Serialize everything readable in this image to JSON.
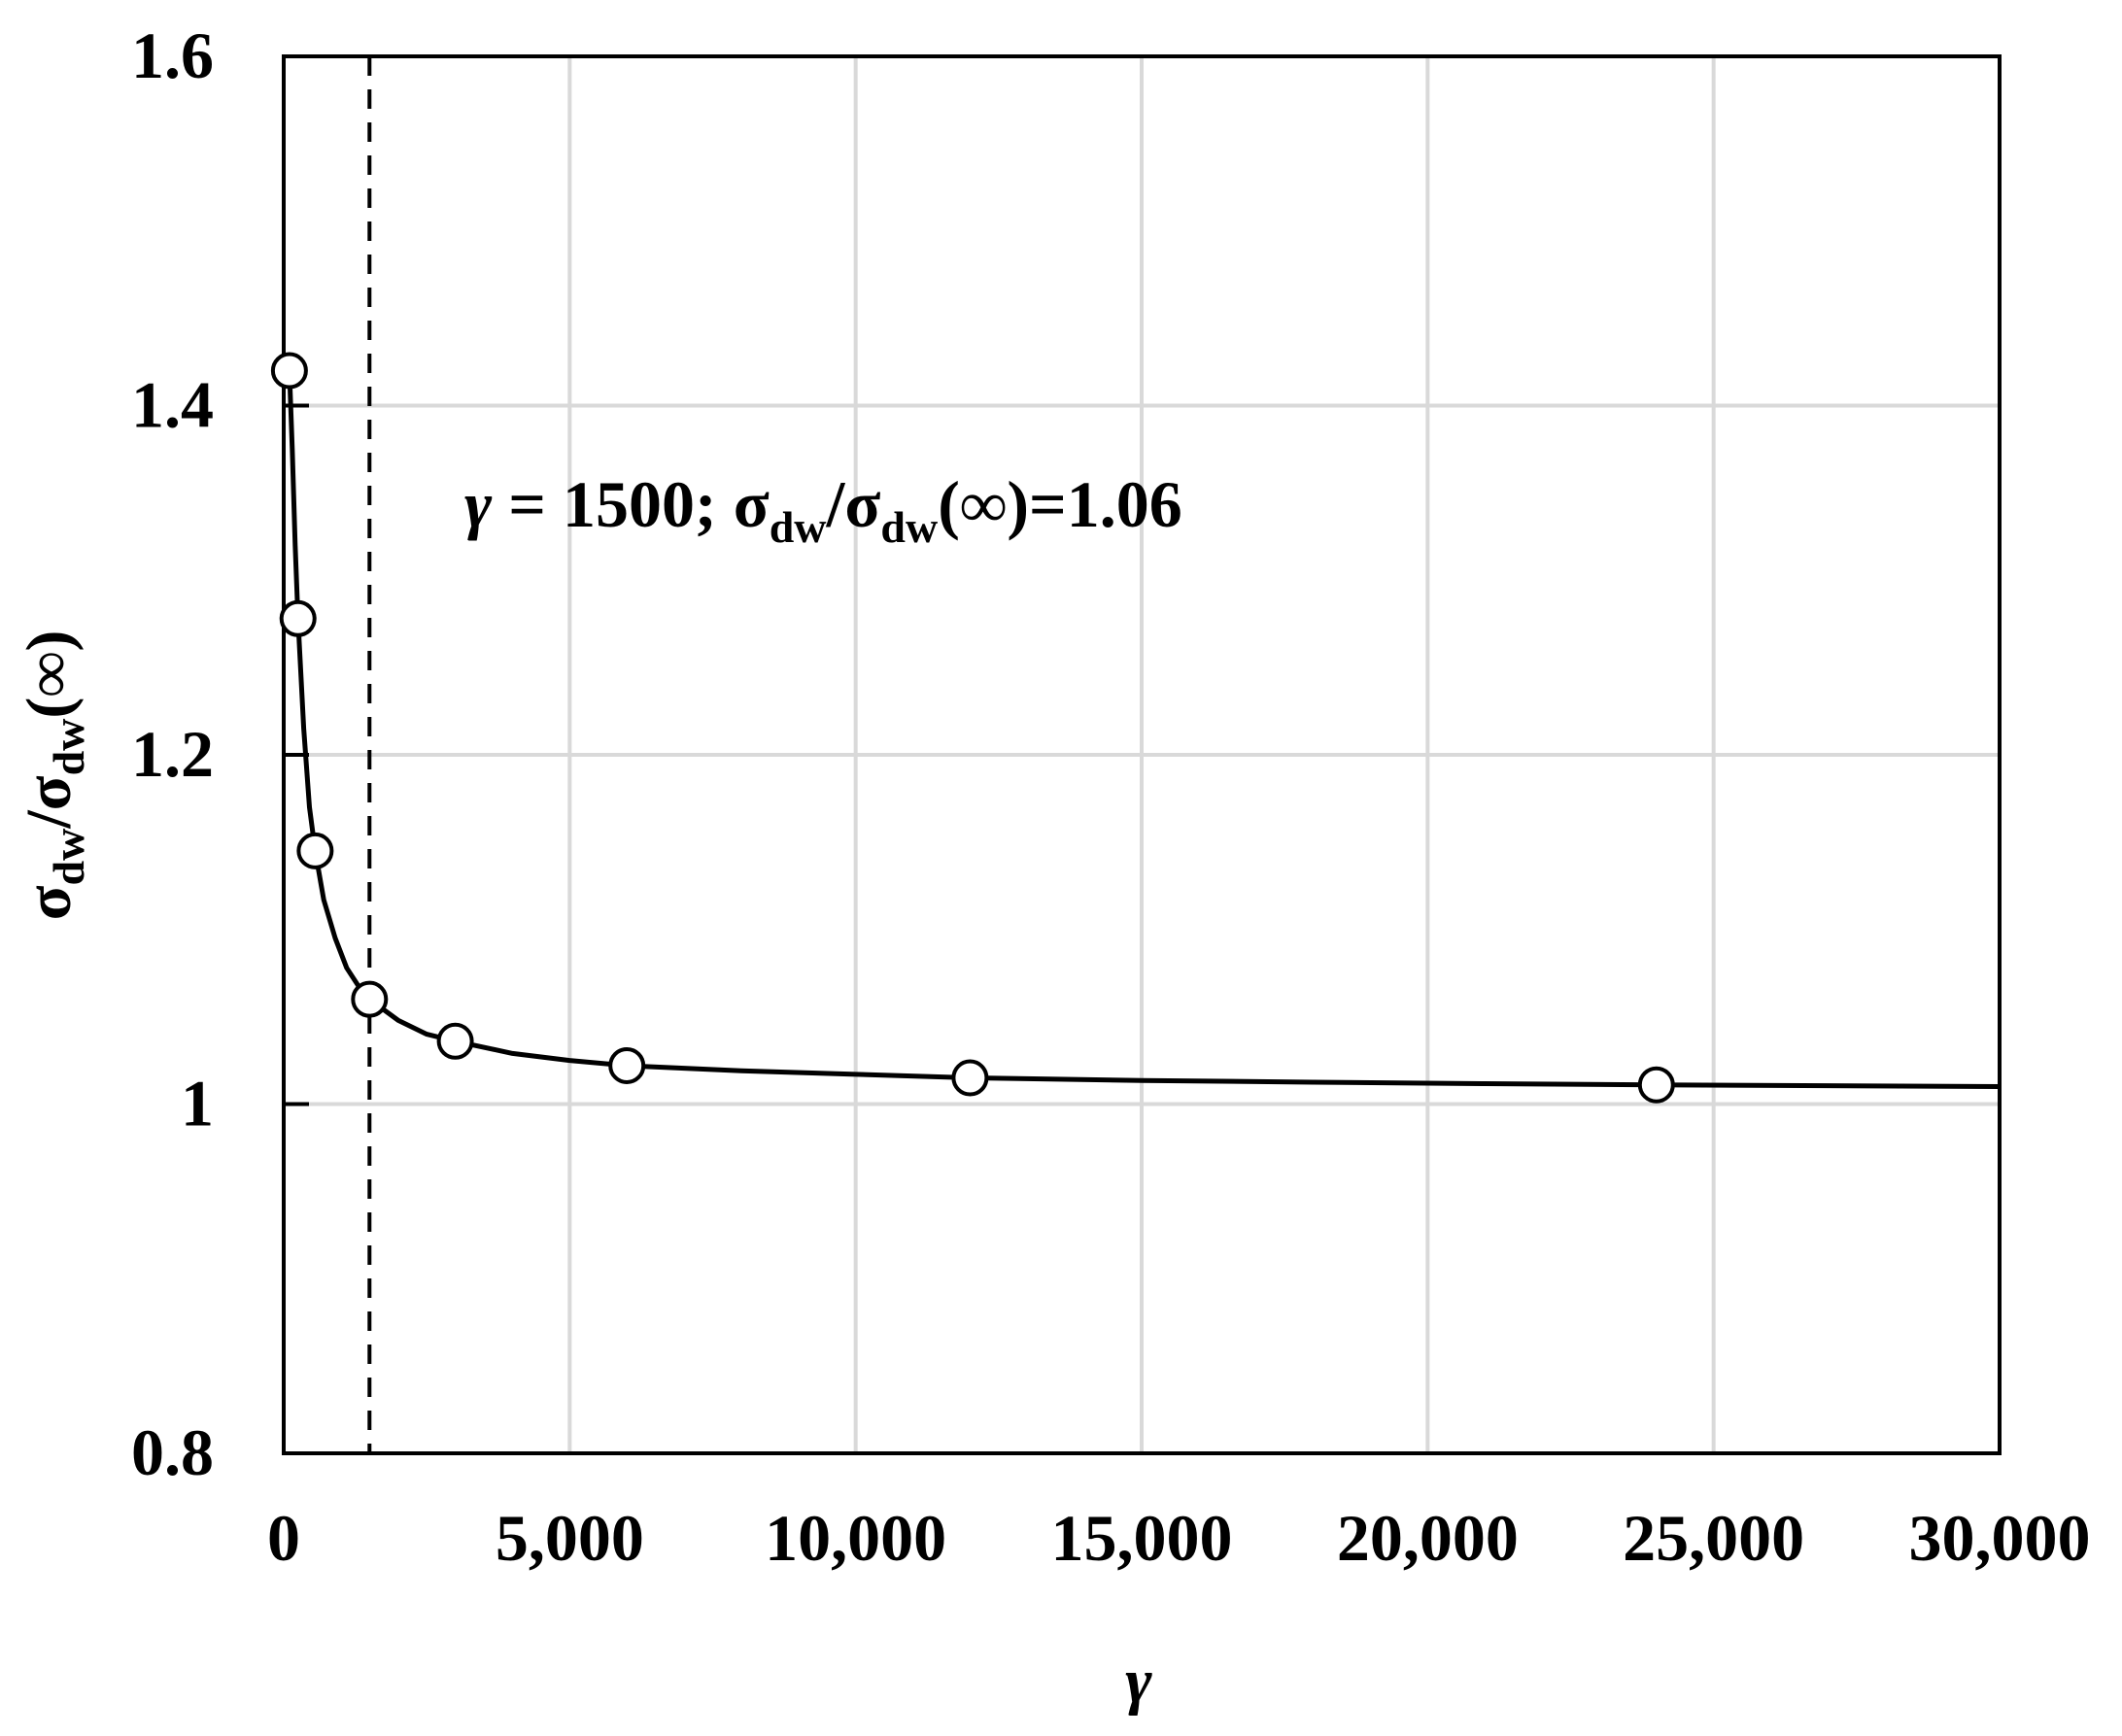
{
  "chart_data": {
    "type": "line",
    "xlabel": "γ",
    "ylabel": {
      "main": "σ",
      "sub": "dw",
      "sep": "/",
      "main2": "σ",
      "sub2": "dw",
      "tail": "(∞)"
    },
    "xlim": [
      0,
      30000
    ],
    "ylim": [
      0.8,
      1.6
    ],
    "x_ticks": [
      0,
      5000,
      10000,
      15000,
      20000,
      25000,
      30000
    ],
    "x_tick_labels": [
      "0",
      "5,000",
      "10,000",
      "15,000",
      "20,000",
      "25,000",
      "30,000"
    ],
    "y_ticks": [
      0.8,
      1.0,
      1.2,
      1.4,
      1.6
    ],
    "y_tick_labels": [
      "0.8",
      "1",
      "1.2",
      "1.4",
      "1.6"
    ],
    "grid": true,
    "series": [
      {
        "style": "markers-open-circle",
        "x": [
          100,
          250,
          550,
          1500,
          3000,
          6000,
          12000,
          24000
        ],
        "y": [
          1.42,
          1.278,
          1.145,
          1.06,
          1.036,
          1.022,
          1.015,
          1.011
        ]
      }
    ],
    "fit_curve": {
      "style": "solid-line",
      "x": [
        100,
        150,
        200,
        250,
        350,
        450,
        550,
        700,
        900,
        1100,
        1300,
        1500,
        2000,
        2500,
        3000,
        4000,
        5000,
        6000,
        8000,
        10000,
        12000,
        15000,
        18000,
        21000,
        24000,
        27000,
        30000
      ],
      "y": [
        1.42,
        1.375,
        1.32,
        1.278,
        1.215,
        1.17,
        1.145,
        1.117,
        1.095,
        1.078,
        1.068,
        1.06,
        1.048,
        1.04,
        1.036,
        1.029,
        1.025,
        1.022,
        1.019,
        1.017,
        1.015,
        1.0135,
        1.0125,
        1.0117,
        1.011,
        1.0105,
        1.01
      ]
    },
    "reference_line": {
      "x": 1500,
      "style": "dashed"
    },
    "annotation": {
      "gamma": "γ",
      "eq": " = 1500; ",
      "s1": "σ",
      "sub1": "dw",
      "slash": "/",
      "s2": "σ",
      "sub2": "dw",
      "rest": "(∞)=1.06"
    }
  }
}
